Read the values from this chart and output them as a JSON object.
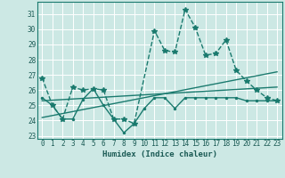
{
  "xlabel": "Humidex (Indice chaleur)",
  "background_color": "#cce8e4",
  "grid_color": "#ffffff",
  "line_color": "#1a7a6e",
  "xlim": [
    -0.5,
    23.5
  ],
  "ylim": [
    22.8,
    31.8
  ],
  "yticks": [
    23,
    24,
    25,
    26,
    27,
    28,
    29,
    30,
    31
  ],
  "xticks": [
    0,
    1,
    2,
    3,
    4,
    5,
    6,
    7,
    8,
    9,
    10,
    11,
    12,
    13,
    14,
    15,
    16,
    17,
    18,
    19,
    20,
    21,
    22,
    23
  ],
  "series": [
    {
      "x": [
        0,
        1,
        2,
        3,
        4,
        5,
        6,
        7,
        8,
        9,
        11,
        12,
        13,
        14,
        15,
        16,
        17,
        18,
        19,
        20,
        21,
        22,
        23
      ],
      "y": [
        26.8,
        25.0,
        24.1,
        26.2,
        26.0,
        26.1,
        26.0,
        24.1,
        24.1,
        23.8,
        29.9,
        28.6,
        28.5,
        31.3,
        30.1,
        28.3,
        28.4,
        29.3,
        27.3,
        26.6,
        26.0,
        25.5,
        25.3
      ],
      "marker": "*",
      "linestyle": "--",
      "linewidth": 1.0
    },
    {
      "x": [
        0,
        1,
        2,
        3,
        4,
        5,
        6,
        7,
        8,
        9,
        10,
        11,
        12,
        13,
        14,
        15,
        16,
        17,
        18,
        19,
        20,
        21,
        22,
        23
      ],
      "y": [
        25.5,
        25.0,
        24.1,
        24.1,
        25.4,
        26.1,
        25.0,
        24.1,
        23.2,
        23.8,
        24.8,
        25.5,
        25.5,
        24.8,
        25.5,
        25.5,
        25.5,
        25.5,
        25.5,
        25.5,
        25.3,
        25.3,
        25.3,
        25.3
      ],
      "marker": ".",
      "linestyle": "-",
      "linewidth": 1.0
    },
    {
      "x": [
        0,
        23
      ],
      "y": [
        24.2,
        27.2
      ],
      "marker": null,
      "linestyle": "-",
      "linewidth": 1.0
    },
    {
      "x": [
        0,
        23
      ],
      "y": [
        25.3,
        26.2
      ],
      "marker": null,
      "linestyle": "-",
      "linewidth": 1.0
    }
  ]
}
